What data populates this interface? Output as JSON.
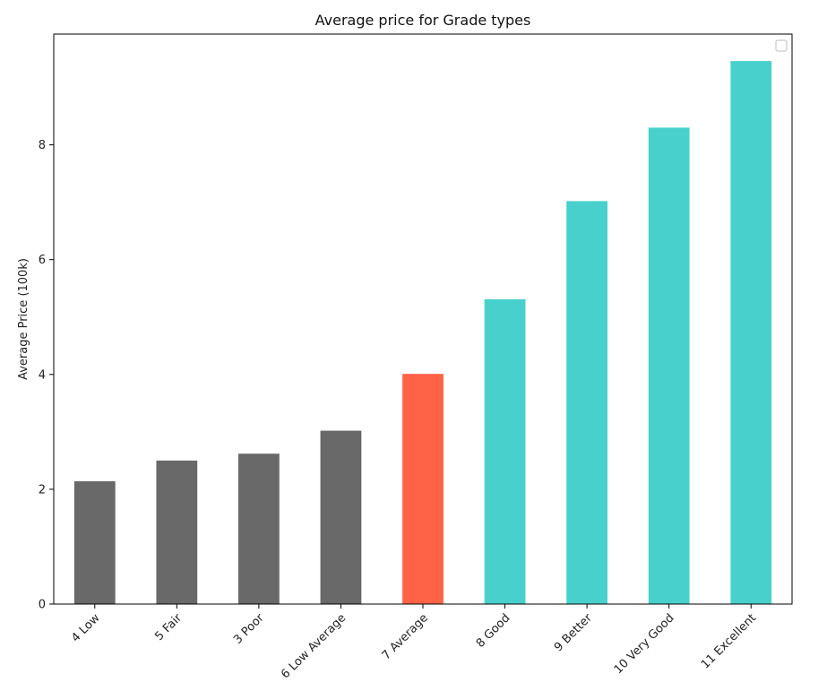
{
  "chart_data": {
    "type": "bar",
    "title": "Average price for Grade types",
    "xlabel": "",
    "ylabel": "Average Price (100k)",
    "categories": [
      "4 Low",
      "5 Fair",
      "3 Poor",
      "6 Low Average",
      "7 Average",
      "8 Good",
      "9 Better",
      "10 Very Good",
      "11 Excellent"
    ],
    "values": [
      2.14,
      2.5,
      2.62,
      3.02,
      4.01,
      5.31,
      7.02,
      8.3,
      9.46
    ],
    "bar_colors": [
      "#696969",
      "#696969",
      "#696969",
      "#696969",
      "#ff6347",
      "#48d1cc",
      "#48d1cc",
      "#48d1cc",
      "#48d1cc"
    ],
    "yticks": [
      0,
      2,
      4,
      6,
      8
    ],
    "ylim": [
      0,
      9.93
    ],
    "grid": false,
    "legend": {
      "position": "upper right",
      "entries": []
    }
  }
}
